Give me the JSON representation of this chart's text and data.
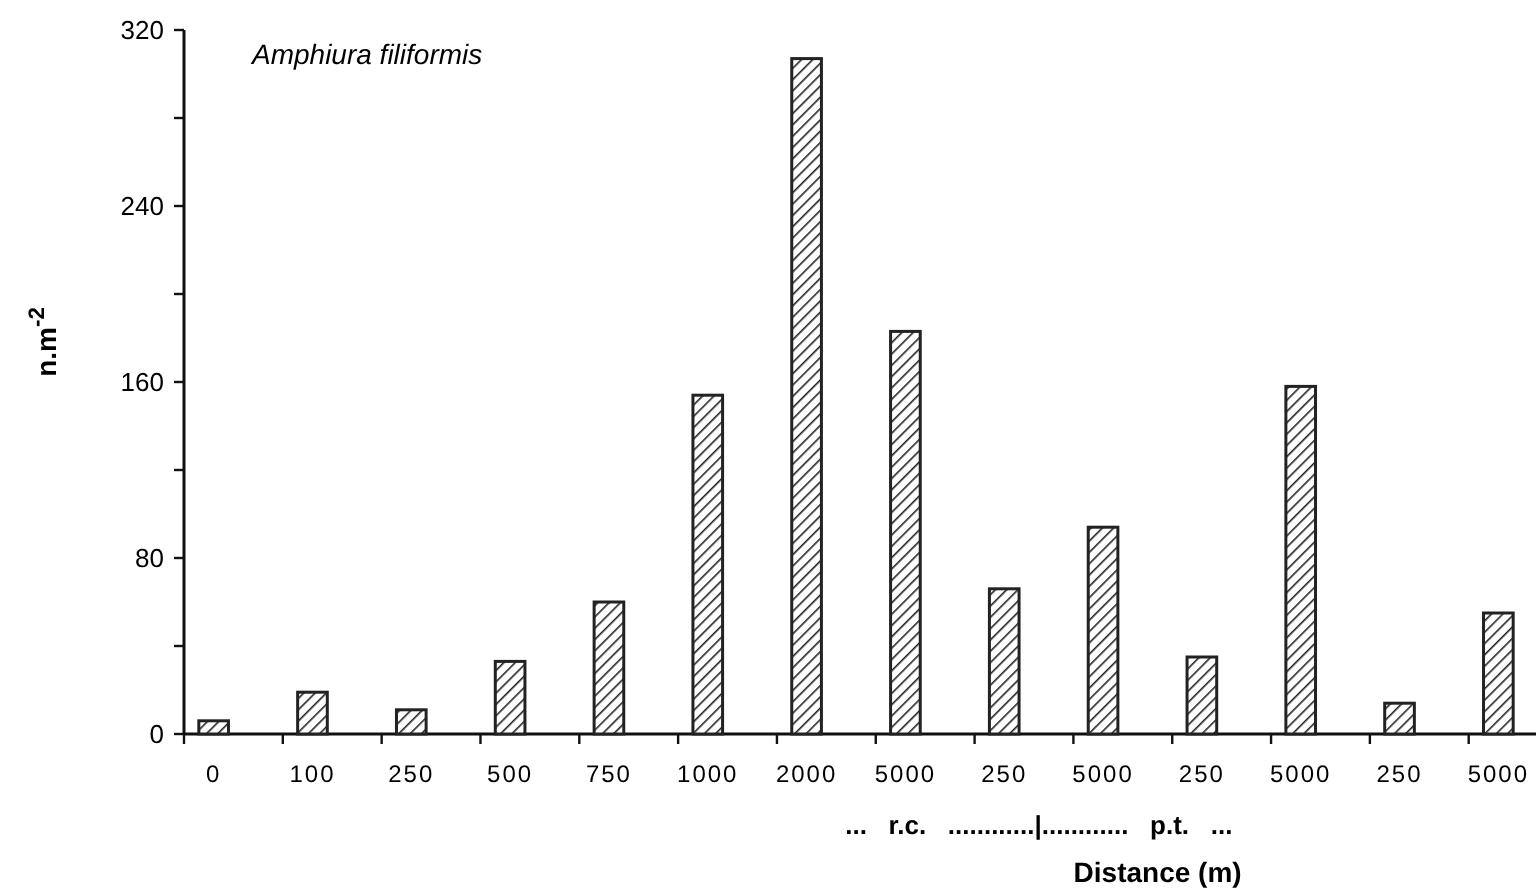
{
  "chart_data": {
    "type": "bar",
    "title": "Amphiura  filiformis",
    "xlabel": "Distance (m)",
    "ylabel": "n.m$^{-2}$",
    "categories": [
      "0",
      "100",
      "250",
      "500",
      "750",
      "1000",
      "2000",
      "5000",
      "250",
      "5000",
      "250",
      "5000",
      "250",
      "5000"
    ],
    "values": [
      6,
      19,
      11,
      33,
      60,
      154,
      307,
      183,
      66,
      94,
      35,
      158,
      14,
      55
    ],
    "color": "#222222",
    "ylim": [
      0,
      320
    ],
    "yticks": [
      0,
      {
        "value": 40,
        "label": null
      },
      80,
      {
        "value": 120,
        "label": null
      },
      160,
      {
        "value": 200,
        "label": null
      },
      240,
      {
        "value": 280,
        "label": null
      },
      320
    ],
    "annotations": [
      "...   r.c.   ............|............   p.t.   ..."
    ],
    "grid": false
  }
}
